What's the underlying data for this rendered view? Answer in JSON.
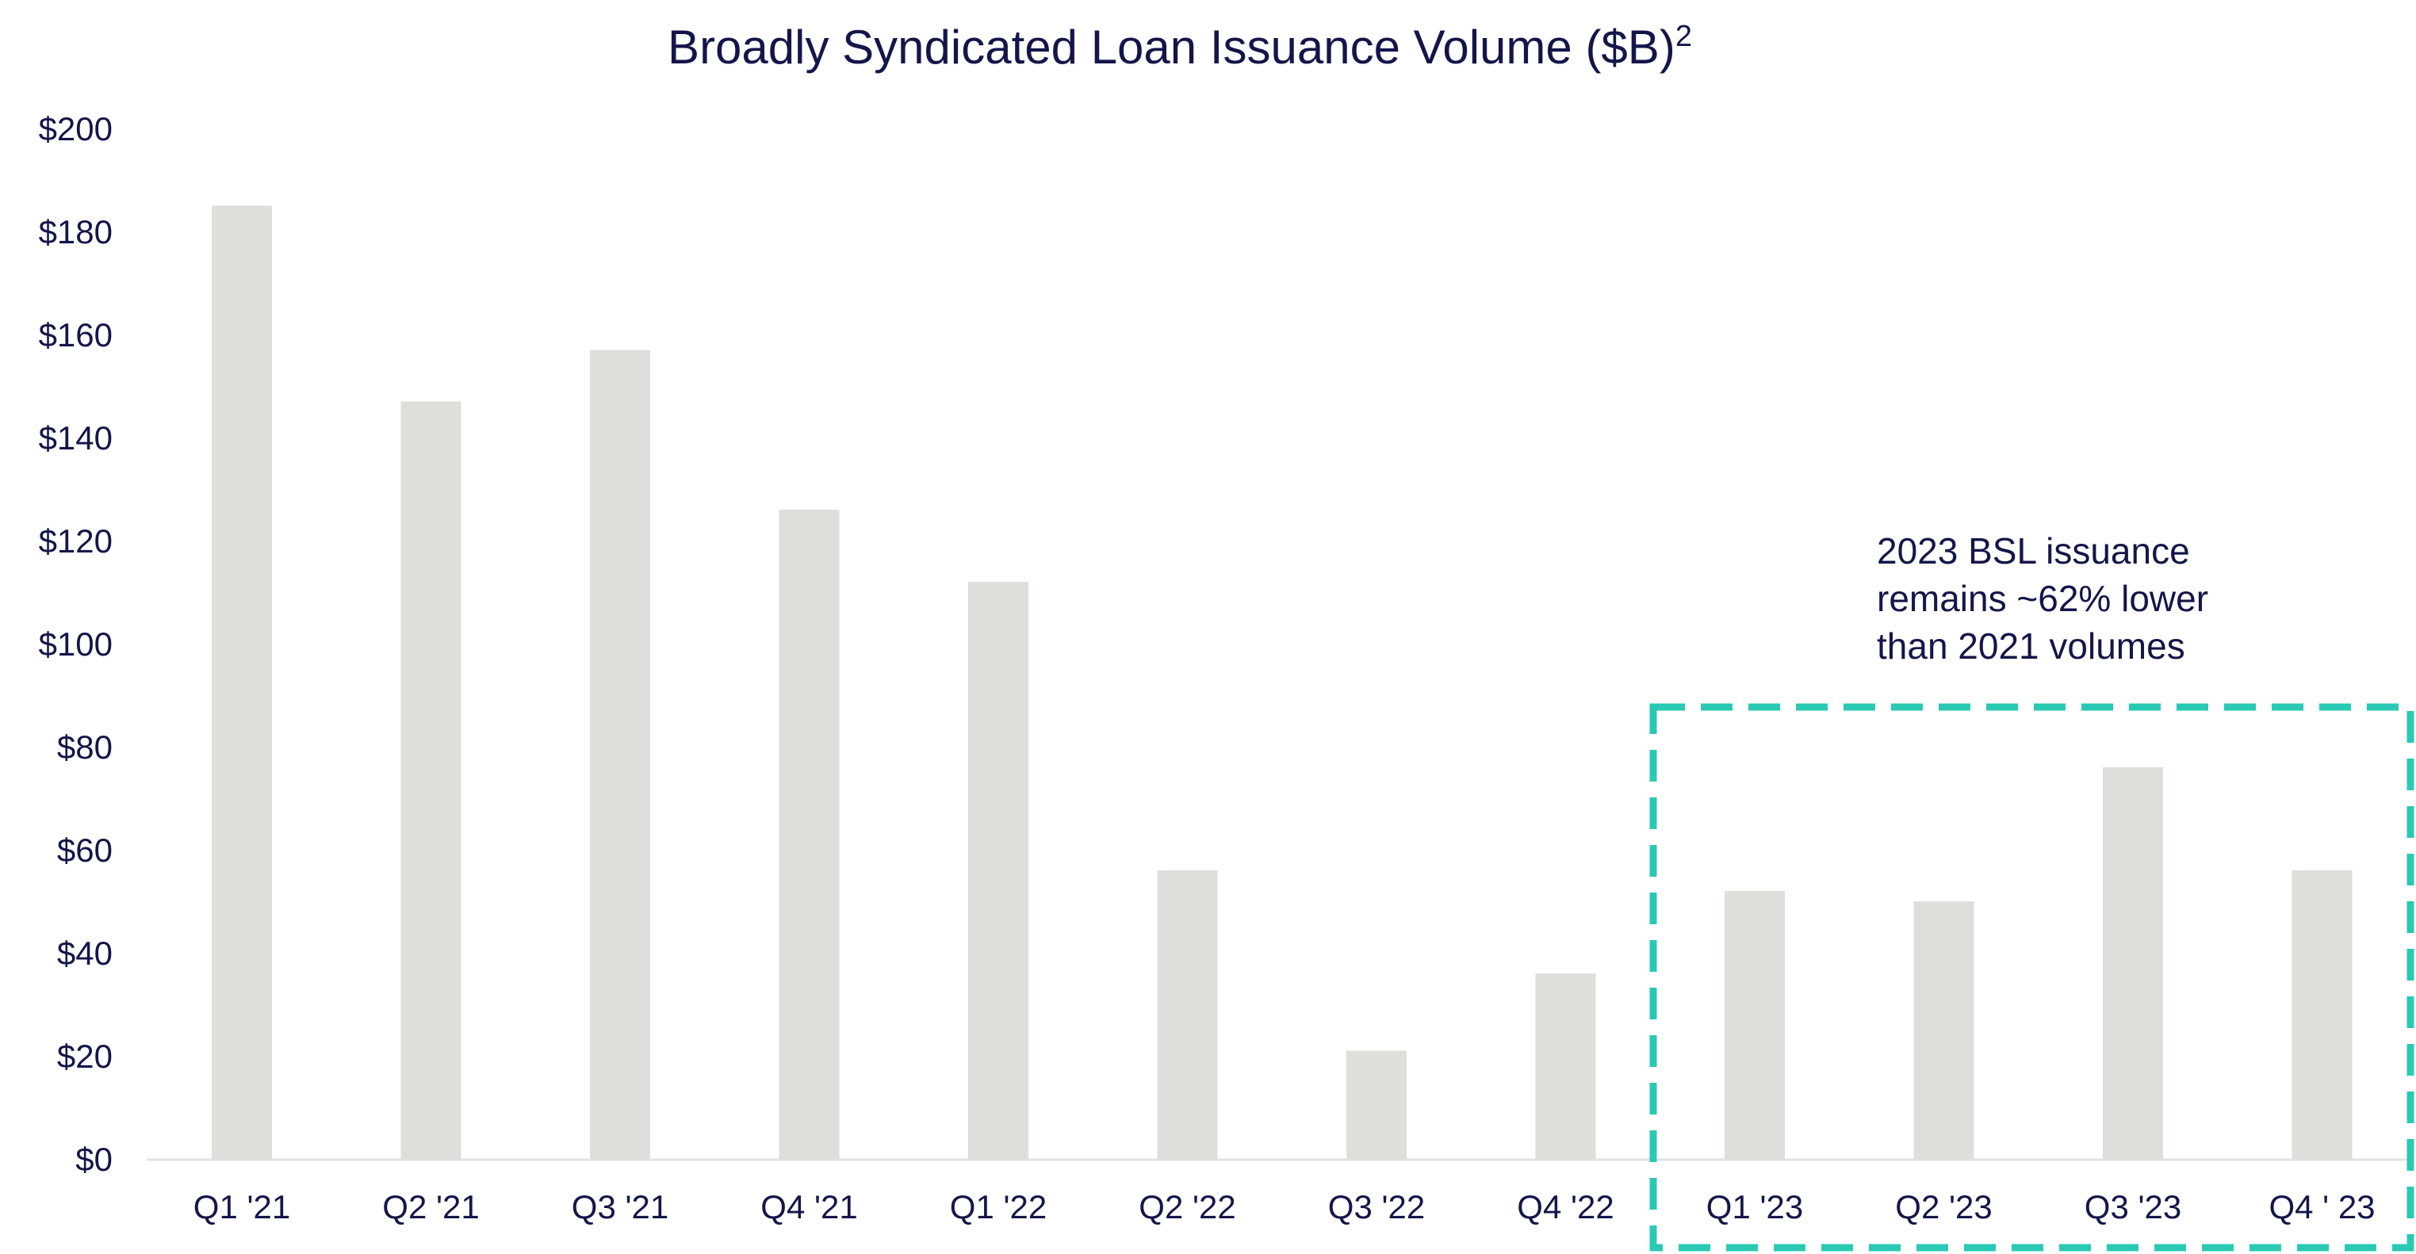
{
  "chart_data": {
    "type": "bar",
    "title": "Broadly Syndicated Loan Issuance Volume ($B)",
    "title_superscript": "2",
    "xlabel": "",
    "ylabel": "",
    "categories": [
      "Q1 '21",
      "Q2 '21",
      "Q3 '21",
      "Q4 '21",
      "Q1 '22",
      "Q2 '22",
      "Q3 '22",
      "Q4 '22",
      "Q1 '23",
      "Q2 '23",
      "Q3 '23",
      "Q4 ' 23"
    ],
    "values": [
      185,
      147,
      157,
      126,
      112,
      56,
      21,
      36,
      52,
      50,
      76,
      56
    ],
    "ylim": [
      0,
      200
    ],
    "yticks": [
      0,
      20,
      40,
      60,
      80,
      100,
      120,
      140,
      160,
      180,
      200
    ],
    "ytick_labels": [
      "$0",
      "$20",
      "$40",
      "$60",
      "$80",
      "$100",
      "$120",
      "$140",
      "$160",
      "$180",
      "$200"
    ],
    "grid": false,
    "bar_color": "#dfdeda",
    "axis_color": "#e2e2e2",
    "text_color": "#14164a",
    "highlight": {
      "categories": [
        "Q1 '23",
        "Q2 '23",
        "Q3 '23",
        "Q4 ' 23"
      ],
      "style": "dashed-box",
      "color": "#2ac9b3",
      "annotation_lines": [
        "2023 BSL issuance",
        "remains ~62% lower",
        "than 2021 volumes"
      ]
    }
  }
}
